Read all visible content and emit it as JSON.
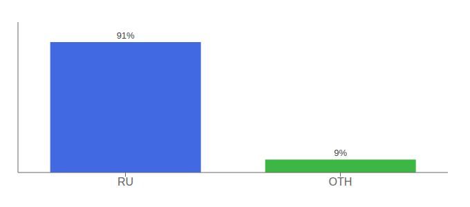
{
  "chart_data": {
    "type": "bar",
    "categories": [
      "RU",
      "OTH"
    ],
    "values": [
      91,
      9
    ],
    "value_labels": [
      "91%",
      "9%"
    ],
    "colors": [
      "#4169e1",
      "#3cb743"
    ],
    "ylim": [
      0,
      105
    ],
    "yticks": [],
    "data_labels": true,
    "tick_labels": "x"
  }
}
